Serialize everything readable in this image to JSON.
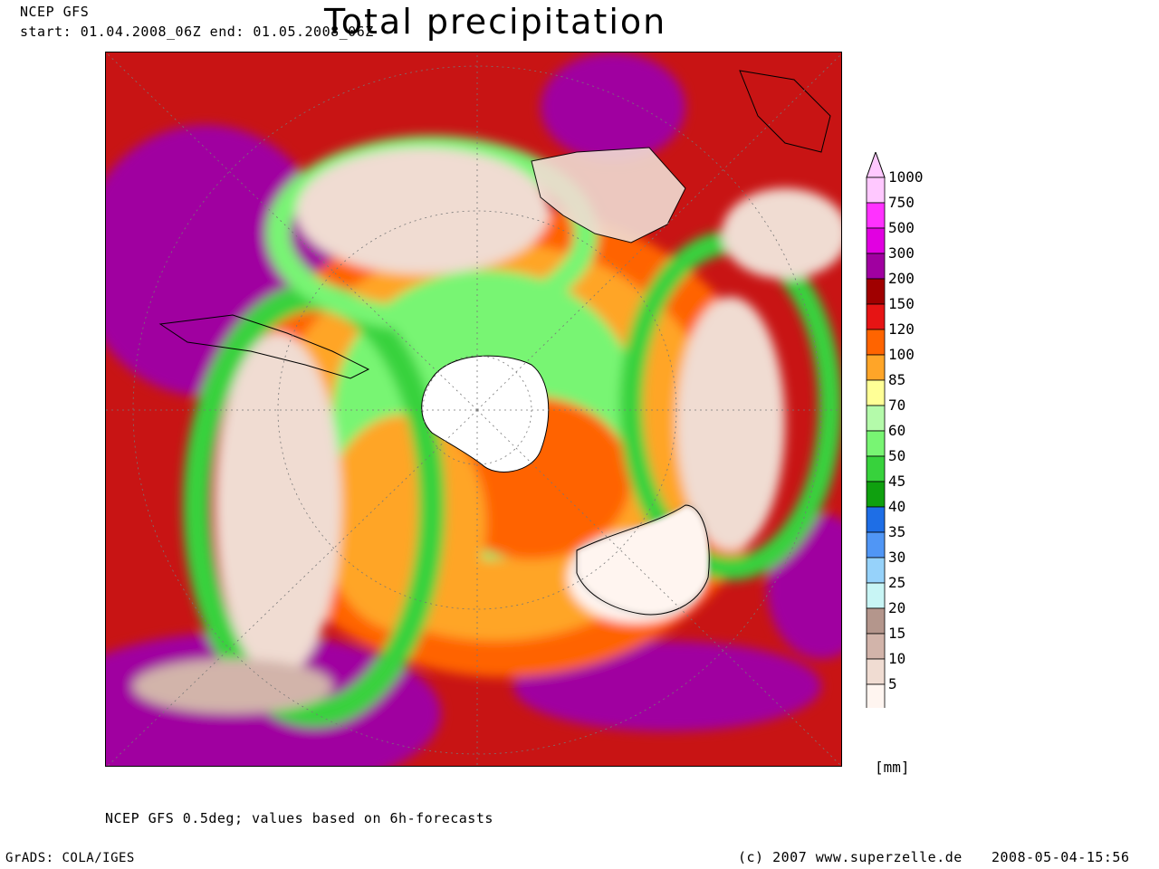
{
  "header": {
    "model": "NCEP GFS",
    "period": "start: 01.04.2008_06Z end: 01.05.2008_06Z",
    "title": "Total precipitation"
  },
  "legend": {
    "unit": "[mm]",
    "levels": [
      {
        "value": "1000",
        "color": "#ffc8ff"
      },
      {
        "value": "750",
        "color": "#ff32ff"
      },
      {
        "value": "500",
        "color": "#e100e1"
      },
      {
        "value": "300",
        "color": "#a000a0"
      },
      {
        "value": "200",
        "color": "#a00000"
      },
      {
        "value": "150",
        "color": "#e61414"
      },
      {
        "value": "120",
        "color": "#ff6400"
      },
      {
        "value": "100",
        "color": "#ffa528"
      },
      {
        "value": "85",
        "color": "#ffff96"
      },
      {
        "value": "70",
        "color": "#b4faaa"
      },
      {
        "value": "60",
        "color": "#78f573"
      },
      {
        "value": "50",
        "color": "#37d23c"
      },
      {
        "value": "45",
        "color": "#0fa00f"
      },
      {
        "value": "40",
        "color": "#1e6ee6"
      },
      {
        "value": "35",
        "color": "#5096f5"
      },
      {
        "value": "30",
        "color": "#96d2fa"
      },
      {
        "value": "25",
        "color": "#c8f5f5"
      },
      {
        "value": "20",
        "color": "#b4968c"
      },
      {
        "value": "15",
        "color": "#d2b4aa"
      },
      {
        "value": "10",
        "color": "#f0dcd2"
      },
      {
        "value": "5",
        "color": "#fff5f0"
      }
    ]
  },
  "footer": {
    "description": "NCEP GFS 0.5deg; values based on 6h-forecasts",
    "grads": "GrADS: COLA/IGES",
    "copyright": "(c) 2007 www.superzelle.de",
    "timestamp": "2008-05-04-15:56"
  }
}
